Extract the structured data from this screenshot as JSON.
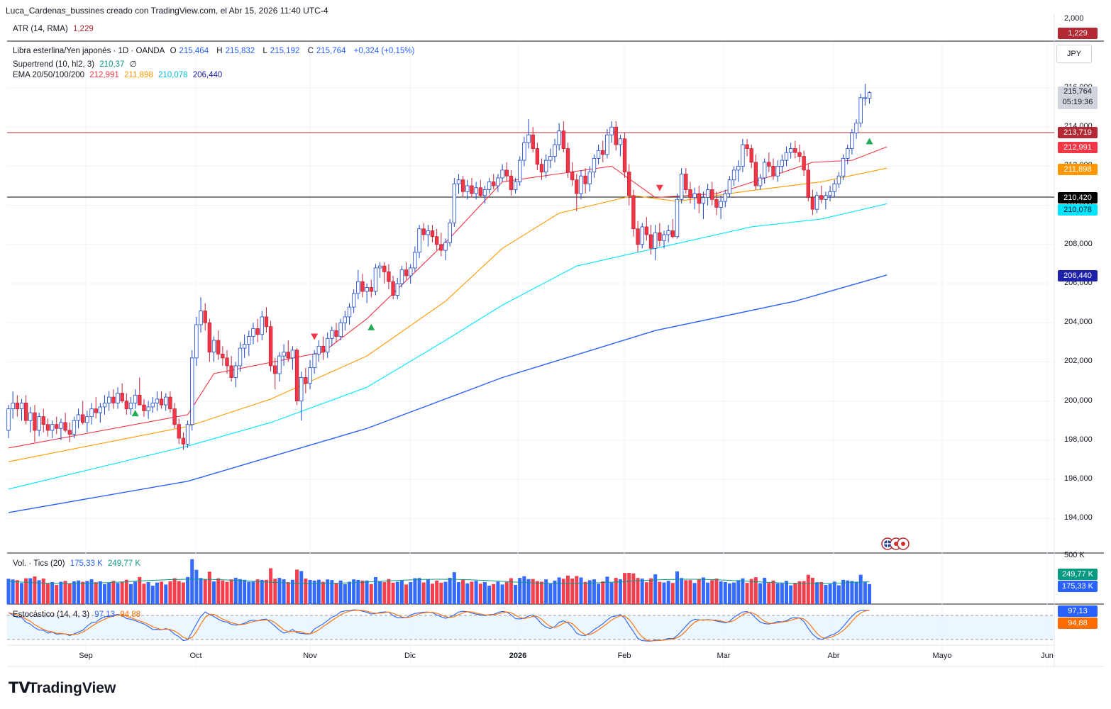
{
  "header": {
    "text": "Luca_Cardenas_bussines creado con TradingView.com, el Abr 15, 2026 11:40 UTC-4"
  },
  "atr": {
    "label": "ATR (14, RMA)",
    "value": "1,229",
    "badge": "1,229",
    "color": "#b22833"
  },
  "price_legend": {
    "symbol": "Libra esterlina/Yen japonés · 1D · OANDA",
    "o_label": "O",
    "o": "215,464",
    "h_label": "H",
    "h": "215,832",
    "l_label": "L",
    "l": "215,192",
    "c_label": "C",
    "c": "215,764",
    "change": "+0,324 (+0,15%)"
  },
  "supertrend": {
    "label": "Supertrend (10, hl2, 3)",
    "value": "210,37",
    "suffix": "∅"
  },
  "ema": {
    "label": "EMA 20/50/100/200",
    "v20": "212,991",
    "v50": "211,898",
    "v100": "210,078",
    "v200": "206,440",
    "colors": {
      "ema20": "#f23645",
      "ema50": "#ff9800",
      "ema100": "#00e5ff",
      "ema200": "#2962ff"
    }
  },
  "currency": "JPY",
  "price_badges": {
    "last": "215,764",
    "countdown": "05:19:36",
    "resistance": "213,719",
    "ema20": "212,991",
    "ema50": "211,898",
    "support": "210,420",
    "ema100": "210,078",
    "ema200": "206,440"
  },
  "price_axis": [
    "216,000",
    "214,000",
    "212,000",
    "210,000",
    "208,000",
    "206,000",
    "204,000",
    "202,000",
    "200,000",
    "198,000",
    "196,000",
    "194,000"
  ],
  "atr_axis_top": "2,000",
  "volume": {
    "label": "Vol. · Tics (20)",
    "v1": "175,33 K",
    "v2": "249,77 K",
    "axis_top": "500 K",
    "badge_ma": "249,77 K",
    "badge_vol": "175,33 K"
  },
  "stoch": {
    "label": "Estocástico (14, 4, 3)",
    "k": "97,13",
    "d": "94,88",
    "badge_k": "97,13",
    "badge_d": "94,88"
  },
  "x_axis": [
    "Sep",
    "Oct",
    "Nov",
    "Dic",
    "2026",
    "Feb",
    "Mar",
    "Abr",
    "Mayo",
    "Jun"
  ],
  "logo": "TradingView",
  "chart_data": {
    "type": "candlestick",
    "title": "Libra esterlina/Yen japonés · 1D · OANDA",
    "y_range": [
      193000,
      216800
    ],
    "horizontal_lines": [
      {
        "name": "resistance",
        "value": 213.719,
        "color": "#b22833"
      },
      {
        "name": "support",
        "value": 210.42,
        "color": "#000000"
      }
    ],
    "candles": [
      [
        198.5,
        199.8,
        198.1,
        199.6
      ],
      [
        199.6,
        200.5,
        199.1,
        199.9
      ],
      [
        199.9,
        200.3,
        199.2,
        199.6
      ],
      [
        199.6,
        200.1,
        199.0,
        199.9
      ],
      [
        199.9,
        200.3,
        198.8,
        199.0
      ],
      [
        199.0,
        199.7,
        198.4,
        199.4
      ],
      [
        199.4,
        199.8,
        197.9,
        198.5
      ],
      [
        198.5,
        199.4,
        198.2,
        199.2
      ],
      [
        199.2,
        199.6,
        198.4,
        198.8
      ],
      [
        198.8,
        199.1,
        198.2,
        198.5
      ],
      [
        198.5,
        199.0,
        198.1,
        198.8
      ],
      [
        198.8,
        199.2,
        198.3,
        198.6
      ],
      [
        198.6,
        199.1,
        198.0,
        198.9
      ],
      [
        198.9,
        199.4,
        198.4,
        198.5
      ],
      [
        198.5,
        198.9,
        197.9,
        198.3
      ],
      [
        198.3,
        199.2,
        198.1,
        199.0
      ],
      [
        199.0,
        199.6,
        198.6,
        199.3
      ],
      [
        199.3,
        200.0,
        198.8,
        198.9
      ],
      [
        198.9,
        199.5,
        198.4,
        199.2
      ],
      [
        199.2,
        199.9,
        198.8,
        199.6
      ],
      [
        199.6,
        200.2,
        199.1,
        199.4
      ],
      [
        199.4,
        199.9,
        198.9,
        199.7
      ],
      [
        199.7,
        200.3,
        199.3,
        199.9
      ],
      [
        199.9,
        200.5,
        199.5,
        200.2
      ],
      [
        200.2,
        200.6,
        199.6,
        199.9
      ],
      [
        199.9,
        200.7,
        199.6,
        200.4
      ],
      [
        200.4,
        200.9,
        199.9,
        200.0
      ],
      [
        200.0,
        200.4,
        199.3,
        199.6
      ],
      [
        199.6,
        200.2,
        199.3,
        199.9
      ],
      [
        199.9,
        200.6,
        199.6,
        200.3
      ],
      [
        200.3,
        201.2,
        199.8,
        199.8
      ],
      [
        199.8,
        200.1,
        199.2,
        199.5
      ],
      [
        199.5,
        200.0,
        199.1,
        199.7
      ],
      [
        199.7,
        200.2,
        199.4,
        199.9
      ],
      [
        199.9,
        200.5,
        199.5,
        200.1
      ],
      [
        200.1,
        200.5,
        199.6,
        199.8
      ],
      [
        199.8,
        200.4,
        199.5,
        200.2
      ],
      [
        200.2,
        200.5,
        199.4,
        199.6
      ],
      [
        199.6,
        199.9,
        198.6,
        198.8
      ],
      [
        198.8,
        199.1,
        197.8,
        198.1
      ],
      [
        198.1,
        198.4,
        197.5,
        197.8
      ],
      [
        197.8,
        199.0,
        197.6,
        198.8
      ],
      [
        198.8,
        202.6,
        198.5,
        202.2
      ],
      [
        202.2,
        204.3,
        201.8,
        203.9
      ],
      [
        203.9,
        205.3,
        203.5,
        204.6
      ],
      [
        204.6,
        205.0,
        203.6,
        204.0
      ],
      [
        204.0,
        204.2,
        202.0,
        202.5
      ],
      [
        202.5,
        203.3,
        202.0,
        203.1
      ],
      [
        203.1,
        203.6,
        202.1,
        202.4
      ],
      [
        202.4,
        202.8,
        201.8,
        202.2
      ],
      [
        202.2,
        202.6,
        201.4,
        201.8
      ],
      [
        201.8,
        202.3,
        201.0,
        201.2
      ],
      [
        201.2,
        202.0,
        200.7,
        201.8
      ],
      [
        201.8,
        203.0,
        201.5,
        202.7
      ],
      [
        202.7,
        203.4,
        202.2,
        202.9
      ],
      [
        202.9,
        203.6,
        202.3,
        203.3
      ],
      [
        203.3,
        204.0,
        202.9,
        203.7
      ],
      [
        203.7,
        204.2,
        203.0,
        203.4
      ],
      [
        203.4,
        204.6,
        203.1,
        204.3
      ],
      [
        204.3,
        204.8,
        203.5,
        203.8
      ],
      [
        203.8,
        204.1,
        201.5,
        201.8
      ],
      [
        201.8,
        202.2,
        200.6,
        201.4
      ],
      [
        201.4,
        202.5,
        201.0,
        202.3
      ],
      [
        202.3,
        202.9,
        201.8,
        202.5
      ],
      [
        202.5,
        203.1,
        202.0,
        202.2
      ],
      [
        202.2,
        202.8,
        201.6,
        202.6
      ],
      [
        202.6,
        202.7,
        199.8,
        200.0
      ],
      [
        200.0,
        201.5,
        199.0,
        201.2
      ],
      [
        201.2,
        201.7,
        200.4,
        200.9
      ],
      [
        200.9,
        202.1,
        200.6,
        201.7
      ],
      [
        201.7,
        202.6,
        201.4,
        202.4
      ],
      [
        202.4,
        203.1,
        202.0,
        202.8
      ],
      [
        202.8,
        203.3,
        202.1,
        202.5
      ],
      [
        202.5,
        203.5,
        202.2,
        203.2
      ],
      [
        203.2,
        203.8,
        202.8,
        203.6
      ],
      [
        203.6,
        204.0,
        203.0,
        203.3
      ],
      [
        203.3,
        204.2,
        203.1,
        204.0
      ],
      [
        204.0,
        204.6,
        203.6,
        204.3
      ],
      [
        204.3,
        205.0,
        203.9,
        204.8
      ],
      [
        204.8,
        205.7,
        204.5,
        205.5
      ],
      [
        205.5,
        206.7,
        205.2,
        206.1
      ],
      [
        206.1,
        206.5,
        205.3,
        205.6
      ],
      [
        205.6,
        206.0,
        205.0,
        205.8
      ],
      [
        205.8,
        206.2,
        205.3,
        205.6
      ],
      [
        205.6,
        207.0,
        205.4,
        206.8
      ],
      [
        206.8,
        207.1,
        206.3,
        206.9
      ],
      [
        206.9,
        207.1,
        206.0,
        206.6
      ],
      [
        206.6,
        207.0,
        205.7,
        206.1
      ],
      [
        206.1,
        206.4,
        205.2,
        205.4
      ],
      [
        205.4,
        206.3,
        205.2,
        206.0
      ],
      [
        206.0,
        206.9,
        205.8,
        206.7
      ],
      [
        206.7,
        207.1,
        206.2,
        206.4
      ],
      [
        206.4,
        207.0,
        206.0,
        206.8
      ],
      [
        206.8,
        207.9,
        206.6,
        207.6
      ],
      [
        207.6,
        209.0,
        207.3,
        208.8
      ],
      [
        208.8,
        209.1,
        208.2,
        208.5
      ],
      [
        208.5,
        209.0,
        207.9,
        208.7
      ],
      [
        208.7,
        209.0,
        208.1,
        208.4
      ],
      [
        208.4,
        208.8,
        207.7,
        208.0
      ],
      [
        208.0,
        208.6,
        207.4,
        207.7
      ],
      [
        207.7,
        208.3,
        207.2,
        208.1
      ],
      [
        208.1,
        209.3,
        207.9,
        209.1
      ],
      [
        209.1,
        211.4,
        208.9,
        211.1
      ],
      [
        211.1,
        211.6,
        210.6,
        211.3
      ],
      [
        211.3,
        211.5,
        210.4,
        210.7
      ],
      [
        210.7,
        211.3,
        210.3,
        211.0
      ],
      [
        211.0,
        211.4,
        210.4,
        210.6
      ],
      [
        210.6,
        211.2,
        210.3,
        210.9
      ],
      [
        210.9,
        211.3,
        210.4,
        210.5
      ],
      [
        210.5,
        211.0,
        210.1,
        210.8
      ],
      [
        210.8,
        211.4,
        210.6,
        211.2
      ],
      [
        211.2,
        211.6,
        210.8,
        211.0
      ],
      [
        211.0,
        211.6,
        210.7,
        211.4
      ],
      [
        211.4,
        212.1,
        211.2,
        211.8
      ],
      [
        211.8,
        212.2,
        211.2,
        211.5
      ],
      [
        211.5,
        211.8,
        210.5,
        210.8
      ],
      [
        210.8,
        211.4,
        210.6,
        211.2
      ],
      [
        211.2,
        212.5,
        211.0,
        212.3
      ],
      [
        212.3,
        213.5,
        212.0,
        213.2
      ],
      [
        213.2,
        214.4,
        212.9,
        213.6
      ],
      [
        213.6,
        214.0,
        212.7,
        212.9
      ],
      [
        212.9,
        213.2,
        211.8,
        212.1
      ],
      [
        212.1,
        212.4,
        211.3,
        211.7
      ],
      [
        211.7,
        212.6,
        211.4,
        212.3
      ],
      [
        212.3,
        212.9,
        211.9,
        212.5
      ],
      [
        212.5,
        213.4,
        212.2,
        213.1
      ],
      [
        213.1,
        214.2,
        212.8,
        213.8
      ],
      [
        213.8,
        214.3,
        212.7,
        212.9
      ],
      [
        212.9,
        213.2,
        211.4,
        211.7
      ],
      [
        211.7,
        212.2,
        211.0,
        211.3
      ],
      [
        211.3,
        211.6,
        209.7,
        210.6
      ],
      [
        210.6,
        211.8,
        210.3,
        211.5
      ],
      [
        211.5,
        211.9,
        210.6,
        211.1
      ],
      [
        211.1,
        212.0,
        210.7,
        211.7
      ],
      [
        211.7,
        212.6,
        211.4,
        212.4
      ],
      [
        212.4,
        213.1,
        212.1,
        212.8
      ],
      [
        212.8,
        213.3,
        212.2,
        212.6
      ],
      [
        212.6,
        213.9,
        212.4,
        213.6
      ],
      [
        213.6,
        214.3,
        213.2,
        214.0
      ],
      [
        214.0,
        214.3,
        212.8,
        213.1
      ],
      [
        213.1,
        213.6,
        212.5,
        213.4
      ],
      [
        213.4,
        213.7,
        211.4,
        211.7
      ],
      [
        211.7,
        212.1,
        210.0,
        210.5
      ],
      [
        210.5,
        210.8,
        208.4,
        208.8
      ],
      [
        208.8,
        209.2,
        207.6,
        208.0
      ],
      [
        208.0,
        209.1,
        207.8,
        208.9
      ],
      [
        208.9,
        209.4,
        208.2,
        208.5
      ],
      [
        208.5,
        209.0,
        207.5,
        207.8
      ],
      [
        207.8,
        209.0,
        207.2,
        208.6
      ],
      [
        208.6,
        209.1,
        207.9,
        208.2
      ],
      [
        208.2,
        208.7,
        207.8,
        208.5
      ],
      [
        208.5,
        209.0,
        208.1,
        208.7
      ],
      [
        208.7,
        209.3,
        208.3,
        208.4
      ],
      [
        208.4,
        210.6,
        208.3,
        210.3
      ],
      [
        210.3,
        211.9,
        210.1,
        211.6
      ],
      [
        211.6,
        211.9,
        210.6,
        210.8
      ],
      [
        210.8,
        211.2,
        210.1,
        210.4
      ],
      [
        210.4,
        210.9,
        209.8,
        210.6
      ],
      [
        210.6,
        211.0,
        209.6,
        210.1
      ],
      [
        210.1,
        210.7,
        209.3,
        210.4
      ],
      [
        210.4,
        211.1,
        210.0,
        210.8
      ],
      [
        210.8,
        211.2,
        210.0,
        210.3
      ],
      [
        210.3,
        210.7,
        209.5,
        209.9
      ],
      [
        209.9,
        210.5,
        209.3,
        210.2
      ],
      [
        210.2,
        210.8,
        209.9,
        210.6
      ],
      [
        210.6,
        211.5,
        210.4,
        211.3
      ],
      [
        211.3,
        212.0,
        211.0,
        211.8
      ],
      [
        211.8,
        212.3,
        211.2,
        212.0
      ],
      [
        212.0,
        213.4,
        211.7,
        213.1
      ],
      [
        213.1,
        213.4,
        212.5,
        212.9
      ],
      [
        212.9,
        213.1,
        211.9,
        212.2
      ],
      [
        212.2,
        212.6,
        210.8,
        211.0
      ],
      [
        211.0,
        211.6,
        210.8,
        211.4
      ],
      [
        211.4,
        212.4,
        211.1,
        212.2
      ],
      [
        212.2,
        212.7,
        211.7,
        212.0
      ],
      [
        212.0,
        212.4,
        211.3,
        211.5
      ],
      [
        211.5,
        212.3,
        211.2,
        212.0
      ],
      [
        212.0,
        212.6,
        211.7,
        212.3
      ],
      [
        212.3,
        213.0,
        212.0,
        212.7
      ],
      [
        212.7,
        213.2,
        212.4,
        212.9
      ],
      [
        212.9,
        213.3,
        212.4,
        212.7
      ],
      [
        212.7,
        213.1,
        212.2,
        212.5
      ],
      [
        212.5,
        212.8,
        211.5,
        211.8
      ],
      [
        211.8,
        212.1,
        210.2,
        210.4
      ],
      [
        210.4,
        210.8,
        209.5,
        209.8
      ],
      [
        209.8,
        210.7,
        209.6,
        210.5
      ],
      [
        210.5,
        211.0,
        210.1,
        210.3
      ],
      [
        210.3,
        210.7,
        209.8,
        210.5
      ],
      [
        210.5,
        211.0,
        210.2,
        210.7
      ],
      [
        210.7,
        211.3,
        210.4,
        211.1
      ],
      [
        211.1,
        211.7,
        210.9,
        211.5
      ],
      [
        211.5,
        212.6,
        211.3,
        212.4
      ],
      [
        212.4,
        213.1,
        212.1,
        212.9
      ],
      [
        212.9,
        213.9,
        212.6,
        213.7
      ],
      [
        213.7,
        214.4,
        213.4,
        214.2
      ],
      [
        214.2,
        215.7,
        214.0,
        215.5
      ],
      [
        215.5,
        216.2,
        215.1,
        215.5
      ],
      [
        215.46,
        215.83,
        215.19,
        215.76
      ]
    ],
    "ema20": [
      [
        0,
        197.6
      ],
      [
        41,
        199.3
      ],
      [
        47,
        201.4
      ],
      [
        72,
        202.5
      ],
      [
        82,
        204.2
      ],
      [
        100,
        208.1
      ],
      [
        113,
        211.2
      ],
      [
        138,
        212.0
      ],
      [
        148,
        210.4
      ],
      [
        162,
        210.6
      ],
      [
        176,
        211.6
      ],
      [
        184,
        212.2
      ],
      [
        193,
        212.3
      ],
      [
        201,
        212.99
      ]
    ],
    "ema50": [
      [
        0,
        196.9
      ],
      [
        41,
        198.7
      ],
      [
        60,
        200.1
      ],
      [
        82,
        202.3
      ],
      [
        100,
        205.1
      ],
      [
        113,
        207.8
      ],
      [
        126,
        209.6
      ],
      [
        143,
        210.5
      ],
      [
        153,
        210.2
      ],
      [
        168,
        210.7
      ],
      [
        186,
        211.2
      ],
      [
        201,
        211.9
      ]
    ],
    "ema100": [
      [
        0,
        195.5
      ],
      [
        41,
        197.7
      ],
      [
        60,
        198.9
      ],
      [
        82,
        200.7
      ],
      [
        100,
        203.1
      ],
      [
        113,
        204.9
      ],
      [
        130,
        206.9
      ],
      [
        150,
        207.9
      ],
      [
        170,
        208.9
      ],
      [
        186,
        209.3
      ],
      [
        201,
        210.08
      ]
    ],
    "ema200": [
      [
        0,
        194.3
      ],
      [
        41,
        195.9
      ],
      [
        82,
        198.6
      ],
      [
        113,
        201.2
      ],
      [
        148,
        203.6
      ],
      [
        180,
        205.1
      ],
      [
        201,
        206.44
      ]
    ],
    "supertrend_signals": [
      {
        "index": 29,
        "type": "buy",
        "price": 199.4
      },
      {
        "index": 70,
        "type": "sell",
        "price": 203.3
      },
      {
        "index": 83,
        "type": "buy",
        "price": 203.8
      },
      {
        "index": 149,
        "type": "sell",
        "price": 210.9
      },
      {
        "index": 197,
        "type": "buy",
        "price": 213.3
      }
    ],
    "volume_axis_max": 500000,
    "stoch_levels": [
      80,
      20
    ]
  }
}
